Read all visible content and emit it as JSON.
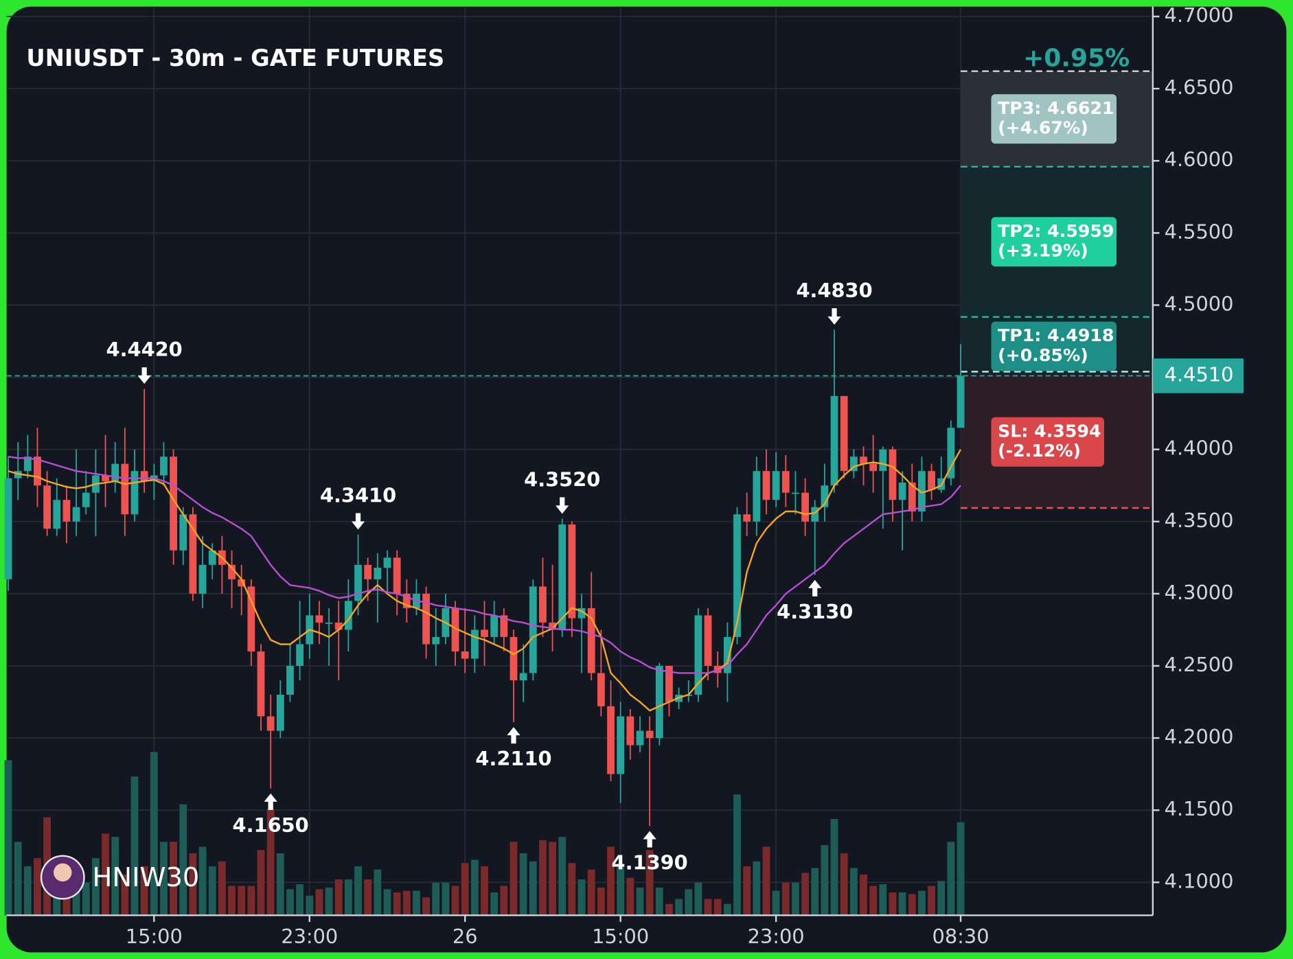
{
  "chart_data": {
    "type": "candlestick",
    "title": "UNIUSDT - 30m - GATE FUTURES",
    "change": "+0.95%",
    "watermark": "HNIW30",
    "up_color": "#26a69a",
    "down_color": "#ef5350",
    "open": [
      4.31,
      4.38,
      4.385,
      4.395,
      4.375,
      4.345,
      4.365,
      4.35,
      4.36,
      4.37,
      4.382,
      4.378,
      4.39,
      4.355,
      4.385,
      4.378,
      4.382,
      4.395,
      4.33,
      4.355,
      4.3,
      4.32,
      4.33,
      4.32,
      4.31,
      4.305,
      4.26,
      4.215,
      4.205,
      4.23,
      4.25,
      4.265,
      4.285,
      4.28,
      4.28,
      4.275,
      4.295,
      4.32,
      4.31,
      4.318,
      4.325,
      4.3,
      4.29,
      4.3,
      4.265,
      4.27,
      4.29,
      4.26,
      4.255,
      4.275,
      4.27,
      4.285,
      4.27,
      4.24,
      4.245,
      4.305,
      4.28,
      4.275,
      4.348,
      4.283,
      4.29,
      4.245,
      4.222,
      4.175,
      4.215,
      4.195,
      4.205,
      4.2,
      4.25,
      4.225,
      4.23,
      4.23,
      4.285,
      4.25,
      4.245,
      4.27,
      4.355,
      4.35,
      4.385,
      4.365,
      4.385,
      4.37,
      4.37,
      4.35,
      4.36,
      4.375,
      4.437,
      4.385,
      4.395,
      4.39,
      4.385,
      4.4,
      4.365,
      4.377,
      4.357,
      4.385,
      4.372,
      4.38,
      4.415
    ],
    "high": [
      4.395,
      4.405,
      4.41,
      4.415,
      4.385,
      4.38,
      4.375,
      4.4,
      4.385,
      4.4,
      4.41,
      4.405,
      4.415,
      4.4,
      4.442,
      4.39,
      4.405,
      4.4,
      4.36,
      4.36,
      4.34,
      4.335,
      4.34,
      4.33,
      4.32,
      4.31,
      4.265,
      4.23,
      4.24,
      4.265,
      4.295,
      4.3,
      4.295,
      4.29,
      4.295,
      4.31,
      4.341,
      4.325,
      4.328,
      4.33,
      4.33,
      4.31,
      4.31,
      4.305,
      4.29,
      4.3,
      4.295,
      4.29,
      4.285,
      4.295,
      4.295,
      4.29,
      4.275,
      4.265,
      4.31,
      4.325,
      4.32,
      4.352,
      4.35,
      4.3,
      4.315,
      4.275,
      4.24,
      4.225,
      4.22,
      4.215,
      4.215,
      4.252,
      4.25,
      4.235,
      4.24,
      4.29,
      4.29,
      4.26,
      4.28,
      4.36,
      4.37,
      4.395,
      4.4,
      4.398,
      4.396,
      4.385,
      4.38,
      4.365,
      4.39,
      4.483,
      4.437,
      4.4,
      4.402,
      4.41,
      4.402,
      4.402,
      4.385,
      4.39,
      4.395,
      4.39,
      4.395,
      4.42,
      4.473
    ],
    "low": [
      4.302,
      4.365,
      4.38,
      4.36,
      4.34,
      4.34,
      4.335,
      4.34,
      4.355,
      4.34,
      4.36,
      4.37,
      4.34,
      4.35,
      4.37,
      4.365,
      4.375,
      4.32,
      4.32,
      4.295,
      4.29,
      4.31,
      4.3,
      4.29,
      4.285,
      4.25,
      4.205,
      4.165,
      4.2,
      4.225,
      4.24,
      4.255,
      4.265,
      4.25,
      4.24,
      4.26,
      4.285,
      4.295,
      4.28,
      4.3,
      4.285,
      4.28,
      4.285,
      4.255,
      4.25,
      4.265,
      4.25,
      4.245,
      4.245,
      4.25,
      4.265,
      4.26,
      4.211,
      4.225,
      4.24,
      4.27,
      4.26,
      4.27,
      4.27,
      4.245,
      4.24,
      4.215,
      4.17,
      4.155,
      4.185,
      4.19,
      4.139,
      4.195,
      4.215,
      4.22,
      4.225,
      4.225,
      4.24,
      4.235,
      4.225,
      4.265,
      4.34,
      4.34,
      4.355,
      4.36,
      4.36,
      4.355,
      4.34,
      4.313,
      4.35,
      4.37,
      4.38,
      4.38,
      4.375,
      4.37,
      4.345,
      4.35,
      4.33,
      4.35,
      4.35,
      4.365,
      4.37,
      4.375,
      4.415
    ],
    "close": [
      4.38,
      4.385,
      4.395,
      4.375,
      4.345,
      4.365,
      4.35,
      4.36,
      4.37,
      4.382,
      4.378,
      4.39,
      4.355,
      4.385,
      4.378,
      4.382,
      4.395,
      4.33,
      4.355,
      4.3,
      4.32,
      4.33,
      4.32,
      4.31,
      4.305,
      4.26,
      4.215,
      4.205,
      4.23,
      4.25,
      4.265,
      4.285,
      4.28,
      4.28,
      4.275,
      4.295,
      4.32,
      4.31,
      4.318,
      4.325,
      4.3,
      4.29,
      4.3,
      4.265,
      4.27,
      4.29,
      4.26,
      4.255,
      4.275,
      4.27,
      4.285,
      4.27,
      4.24,
      4.245,
      4.305,
      4.28,
      4.275,
      4.348,
      4.283,
      4.29,
      4.245,
      4.222,
      4.175,
      4.215,
      4.195,
      4.205,
      4.2,
      4.25,
      4.225,
      4.23,
      4.23,
      4.285,
      4.25,
      4.245,
      4.27,
      4.355,
      4.35,
      4.385,
      4.365,
      4.385,
      4.37,
      4.37,
      4.35,
      4.36,
      4.375,
      4.437,
      4.385,
      4.395,
      4.39,
      4.385,
      4.4,
      4.365,
      4.377,
      4.357,
      4.385,
      4.372,
      4.38,
      4.415,
      4.451
    ],
    "volume": [
      95,
      45,
      30,
      35,
      60,
      30,
      25,
      30,
      20,
      35,
      50,
      48,
      25,
      85,
      30,
      100,
      45,
      45,
      68,
      38,
      42,
      30,
      33,
      18,
      18,
      18,
      40,
      65,
      38,
      16,
      19,
      12,
      16,
      17,
      22,
      22,
      30,
      22,
      28,
      16,
      14,
      15,
      15,
      11,
      20,
      20,
      18,
      32,
      34,
      30,
      14,
      18,
      45,
      38,
      33,
      46,
      45,
      48,
      32,
      22,
      28,
      17,
      42,
      30,
      23,
      17,
      40,
      17,
      7,
      10,
      16,
      20,
      10,
      10,
      7,
      74,
      30,
      33,
      42,
      15,
      20,
      20,
      26,
      29,
      43,
      59,
      38,
      29,
      25,
      18,
      19,
      14,
      14,
      13,
      15,
      18,
      21,
      45,
      57
    ],
    "moving_averages": [
      {
        "color": "#f5a623",
        "values": [
          4.385,
          4.383,
          4.382,
          4.381,
          4.378,
          4.376,
          4.374,
          4.373,
          4.374,
          4.376,
          4.377,
          4.378,
          4.376,
          4.377,
          4.378,
          4.379,
          4.376,
          4.365,
          4.355,
          4.345,
          4.335,
          4.33,
          4.325,
          4.318,
          4.31,
          4.295,
          4.28,
          4.268,
          4.265,
          4.265,
          4.27,
          4.275,
          4.273,
          4.27,
          4.275,
          4.282,
          4.292,
          4.3,
          4.306,
          4.3,
          4.295,
          4.292,
          4.29,
          4.287,
          4.283,
          4.28,
          4.276,
          4.273,
          4.27,
          4.268,
          4.265,
          4.262,
          4.258,
          4.262,
          4.27,
          4.273,
          4.276,
          4.283,
          4.29,
          4.288,
          4.283,
          4.27,
          4.245,
          4.238,
          4.23,
          4.225,
          4.219,
          4.222,
          4.225,
          4.228,
          4.23,
          4.238,
          4.245,
          4.247,
          4.252,
          4.28,
          4.315,
          4.335,
          4.345,
          4.352,
          4.357,
          4.357,
          4.355,
          4.356,
          4.362,
          4.375,
          4.382,
          4.388,
          4.39,
          4.391,
          4.39,
          4.388,
          4.382,
          4.375,
          4.37,
          4.372,
          4.375,
          4.388,
          4.4
        ]
      },
      {
        "color": "#b84fd1",
        "values": [
          4.395,
          4.394,
          4.394,
          4.393,
          4.391,
          4.389,
          4.387,
          4.385,
          4.384,
          4.383,
          4.382,
          4.381,
          4.38,
          4.38,
          4.38,
          4.38,
          4.378,
          4.375,
          4.37,
          4.365,
          4.36,
          4.356,
          4.353,
          4.349,
          4.345,
          4.34,
          4.33,
          4.32,
          4.312,
          4.306,
          4.305,
          4.304,
          4.302,
          4.299,
          4.297,
          4.298,
          4.3,
          4.302,
          4.303,
          4.301,
          4.3,
          4.298,
          4.295,
          4.294,
          4.292,
          4.291,
          4.29,
          4.289,
          4.288,
          4.286,
          4.285,
          4.283,
          4.281,
          4.28,
          4.278,
          4.277,
          4.276,
          4.275,
          4.275,
          4.274,
          4.272,
          4.27,
          4.266,
          4.26,
          4.256,
          4.253,
          4.249,
          4.247,
          4.246,
          4.245,
          4.245,
          4.245,
          4.245,
          4.247,
          4.25,
          4.258,
          4.265,
          4.275,
          4.285,
          4.292,
          4.3,
          4.305,
          4.31,
          4.315,
          4.32,
          4.328,
          4.335,
          4.34,
          4.345,
          4.35,
          4.355,
          4.356,
          4.357,
          4.358,
          4.36,
          4.361,
          4.362,
          4.367,
          4.375
        ]
      }
    ],
    "annotations": [
      {
        "label": "4.4420",
        "candle": 14,
        "side": "high"
      },
      {
        "label": "4.1650",
        "candle": 27,
        "side": "low"
      },
      {
        "label": "4.3410",
        "candle": 36,
        "side": "high"
      },
      {
        "label": "4.2110",
        "candle": 52,
        "side": "low"
      },
      {
        "label": "4.3520",
        "candle": 57,
        "side": "high"
      },
      {
        "label": "4.1390",
        "candle": 66,
        "side": "low"
      },
      {
        "label": "4.3130",
        "candle": 83,
        "side": "low"
      },
      {
        "label": "4.4830",
        "candle": 85,
        "side": "high"
      }
    ],
    "current_price": {
      "value": 4.451,
      "label": "4.4510"
    },
    "levels": [
      {
        "label": "TP3: 4.6621",
        "change": "(+4.67%)",
        "value": 4.6621,
        "color": "#9fc4c1",
        "line_color": "#d0d4dc",
        "zone_color": "#2a2f38"
      },
      {
        "label": "TP2: 4.5959",
        "change": "(+3.19%)",
        "value": 4.5959,
        "color": "#1fcf9d",
        "line_color": "#2bb7a0",
        "zone_color": "#13292d"
      },
      {
        "label": "TP1: 4.4918",
        "change": "(+0.85%)",
        "value": 4.4918,
        "color": "#1e8f86",
        "line_color": "#2bb7a0",
        "zone_color": "#14262b"
      },
      {
        "label": "SL: 4.3594",
        "change": "(-2.12%)",
        "value": 4.3594,
        "color": "#d9474a",
        "line_color": "#ef5350",
        "zone_color": "#2e1f27"
      }
    ],
    "ylim": [
      4.1,
      4.7
    ],
    "yticks": [
      {
        "value": 4.7,
        "label": "4.7000"
      },
      {
        "value": 4.65,
        "label": "4.6500"
      },
      {
        "value": 4.6,
        "label": "4.6000"
      },
      {
        "value": 4.55,
        "label": "4.5500"
      },
      {
        "value": 4.5,
        "label": "4.5000"
      },
      {
        "value": 4.45,
        "label": "4.4500"
      },
      {
        "value": 4.4,
        "label": "4.4000"
      },
      {
        "value": 4.35,
        "label": "4.3500"
      },
      {
        "value": 4.3,
        "label": "4.3000"
      },
      {
        "value": 4.25,
        "label": "4.2500"
      },
      {
        "value": 4.2,
        "label": "4.2000"
      },
      {
        "value": 4.15,
        "label": "4.1500"
      },
      {
        "value": 4.1,
        "label": "4.1000"
      }
    ],
    "xticks": [
      {
        "value": 15,
        "label": "15:00"
      },
      {
        "value": 31,
        "label": "23:00"
      },
      {
        "value": 47,
        "label": "26"
      },
      {
        "value": 63,
        "label": "15:00"
      },
      {
        "value": 79,
        "label": "23:00"
      },
      {
        "value": 98,
        "label": "08:30"
      }
    ],
    "grid": true
  }
}
